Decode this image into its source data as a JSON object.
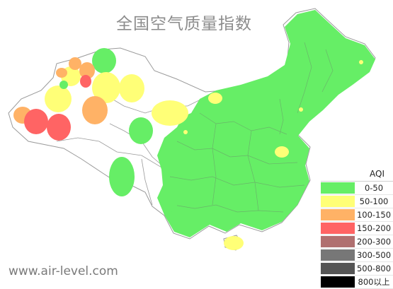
{
  "title": "全国空气质量指数",
  "watermark": "www.air-level.com",
  "legend": {
    "title": "AQI",
    "items": [
      {
        "label": "0-50",
        "color": "#66ee66"
      },
      {
        "label": "50-100",
        "color": "#ffff77"
      },
      {
        "label": "100-150",
        "color": "#ffb266"
      },
      {
        "label": "150-200",
        "color": "#ff6464"
      },
      {
        "label": "200-300",
        "color": "#b07070"
      },
      {
        "label": "300-500",
        "color": "#777777"
      },
      {
        "label": "500-800",
        "color": "#555555"
      },
      {
        "label": "800以上",
        "color": "#000000"
      }
    ]
  }
}
